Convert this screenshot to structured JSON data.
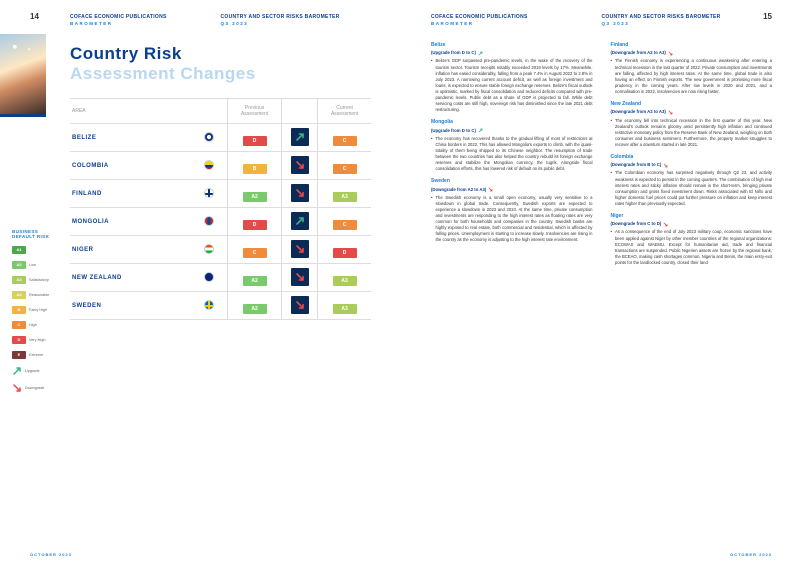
{
  "header": {
    "publication": "COFACE ECONOMIC PUBLICATIONS",
    "sub": "BAROMETER",
    "right_title": "COUNTRY AND SECTOR RISKS BAROMETER",
    "right_sub": "Q3 2023",
    "page_left": "14",
    "page_right": "15",
    "footer": "OCTOBER 2023"
  },
  "title": {
    "line1": "Country Risk",
    "line2": "Assessment Changes",
    "line1_color": "#0a3e90"
  },
  "table": {
    "head": {
      "area": "AREA",
      "prev": "Previous\nAssessment",
      "curr": "Current\nAssessment"
    },
    "trend_bg": "#0b2a56",
    "rows": [
      {
        "country": "BELIZE",
        "flag": "flag-belize",
        "prev": "D",
        "prev_color": "#e34a4a",
        "curr": "C",
        "curr_color": "#ef8b3a",
        "trend": "up"
      },
      {
        "country": "COLOMBIA",
        "flag": "flag-colombia",
        "prev": "B",
        "prev_color": "#f2b43a",
        "curr": "C",
        "curr_color": "#ef8b3a",
        "trend": "down"
      },
      {
        "country": "FINLAND",
        "flag": "flag-finland",
        "prev": "A2",
        "prev_color": "#7bc96d",
        "curr": "A3",
        "curr_color": "#a9cc5a",
        "trend": "down"
      },
      {
        "country": "MONGOLIA",
        "flag": "flag-mongolia",
        "prev": "D",
        "prev_color": "#e34a4a",
        "curr": "C",
        "curr_color": "#ef8b3a",
        "trend": "up"
      },
      {
        "country": "NIGER",
        "flag": "flag-niger",
        "prev": "C",
        "prev_color": "#ef8b3a",
        "curr": "D",
        "curr_color": "#e34a4a",
        "trend": "down"
      },
      {
        "country": "NEW ZEALAND",
        "flag": "flag-nz",
        "prev": "A2",
        "prev_color": "#7bc96d",
        "curr": "A3",
        "curr_color": "#a9cc5a",
        "trend": "down"
      },
      {
        "country": "SWEDEN",
        "flag": "flag-sweden",
        "prev": "A2",
        "prev_color": "#7bc96d",
        "curr": "A3",
        "curr_color": "#a9cc5a",
        "trend": "down"
      }
    ]
  },
  "legend": {
    "title": "BUSINESS DEFAULT RISK",
    "items": [
      {
        "code": "A1",
        "color": "#4aa84a",
        "label": ""
      },
      {
        "code": "A2",
        "color": "#7bc96d",
        "label": "Low"
      },
      {
        "code": "A3",
        "color": "#a9cc5a",
        "label": "Satisfactory"
      },
      {
        "code": "A4",
        "color": "#d6d25a",
        "label": "Reasonable"
      },
      {
        "code": "B",
        "color": "#f2b43a",
        "label": "Fairly High"
      },
      {
        "code": "C",
        "color": "#ef8b3a",
        "label": "High"
      },
      {
        "code": "D",
        "color": "#e34a4a",
        "label": "Very High"
      },
      {
        "code": "E",
        "color": "#7a3a3a",
        "label": "Extreme"
      }
    ],
    "upgrade": "Upgrade",
    "downgrade": "Downgrade",
    "up_color": "#3ab08f",
    "down_color": "#e34a4a"
  },
  "analysis": {
    "col1": [
      {
        "country": "Belize",
        "change": "(Upgrade from D to C)",
        "dir": "up",
        "text": "Belize's GDP surpassed pre-pandemic levels, in the wake of the recovery of the tourism sector. Tourism receipts notably exceeded 2019 levels by 17%. Meanwhile, inflation has eased considerably, falling from a peak 7.4% in August 2022 to 2.8% in July 2023. A narrowing current account deficit, as well as foreign investment and loans, is expected to ensure stable foreign exchange reserves. Belize's fiscal outlook is optimistic, marked by fiscal consolidation and reduced deficits compared with pre-pandemic levels. Public debt as a share of GDP is projected to fall. While debt servicing costs are still high, sovereign risk has diminished since the late 2021 debt restructuring."
      },
      {
        "country": "Mongolia",
        "change": "(Upgrade from D to C)",
        "dir": "up",
        "text": "The economy has recovered thanks to the gradual lifting of most of restrictions at China borders in 2022. This has allowed Mongolia's exports to climb, with the quasi-totality of them being shipped to its Chinese neighbor. The resumption of trade between the two countries has also helped the country rebuild its foreign exchange reserves and stabilize the Mongolian currency, the tugrik. Alongside fiscal consolidation efforts, this has lowered risk of default on its public debt."
      },
      {
        "country": "Sweden",
        "change": "(Downgrade from A2 to A3)",
        "dir": "down",
        "text": "The Swedish economy is a small open economy, usually very sensitive to a slowdown in global trade. Consequently, Swedish exports are expected to experience a slowdown in 2023 and 2024. At the same time, private consumption and investments are responding to the high interest rates as floating rates are very common for both households and companies in the country. Swedish banks are highly exposed to real estate, both commercial and residential, which is affected by falling prices. Unemployment is starting to increase slowly. Insolvencies are rising in the country as the economy is adjusting to the high interest rate environment."
      }
    ],
    "col2": [
      {
        "country": "Finland",
        "change": "(Downgrade from A2 to A3)",
        "dir": "down",
        "text": "The Finnish economy is experiencing a continuous weakening after entering a technical recession in the last quarter of 2022. Private consumption and investments are falling, affected by high interest rates. At the same time, global trade is also having an effect on Finnish exports. The new government is promising more fiscal prudency in the coming years. After low levels in 2020 and 2021, and a normalisation in 2022, insolvencies are now rising faster."
      },
      {
        "country": "New Zealand",
        "change": "(Downgrade from A2 to A3)",
        "dir": "down",
        "text": "The economy fell into technical recession in the first quarter of this year. New Zealand's outlook remains gloomy amid persistently high inflation and continued restrictive monetary policy from the Reserve Bank of New Zealand, weighing on both consumer and business sentiment. Furthermore, the property market struggles to recover after a downturn started in late 2021."
      },
      {
        "country": "Colombia",
        "change": "(Downgrade from B to C)",
        "dir": "down",
        "text": "The Colombian economy has surprised negatively through Q2 23, and activity weakness is expected to persist in the coming quarters. The combination of high real interest rates and sticky inflation should remain in the short-term, bringing private consumption and gross fixed investment down. Risks associated with El Niño and higher domestic fuel prices could put further pressure on inflation and keep interest rates higher than previously expected."
      },
      {
        "country": "Niger",
        "change": "(Downgrade from C to D)",
        "dir": "down",
        "text": "As a consequence of the end of July 2023 military coup, economic sanctions have been applied against Niger by other member countries of the regional organizations: ECOWAS and WAEMU. Except for humanitarian aid, trade and financial transactions are suspended. Public Nigerien assets are frozen by the regional bank, the BCEAO, making cash shortages common. Nigeria and Benin, the main entry-exit points for the landlocked country, closed their land"
      }
    ]
  }
}
